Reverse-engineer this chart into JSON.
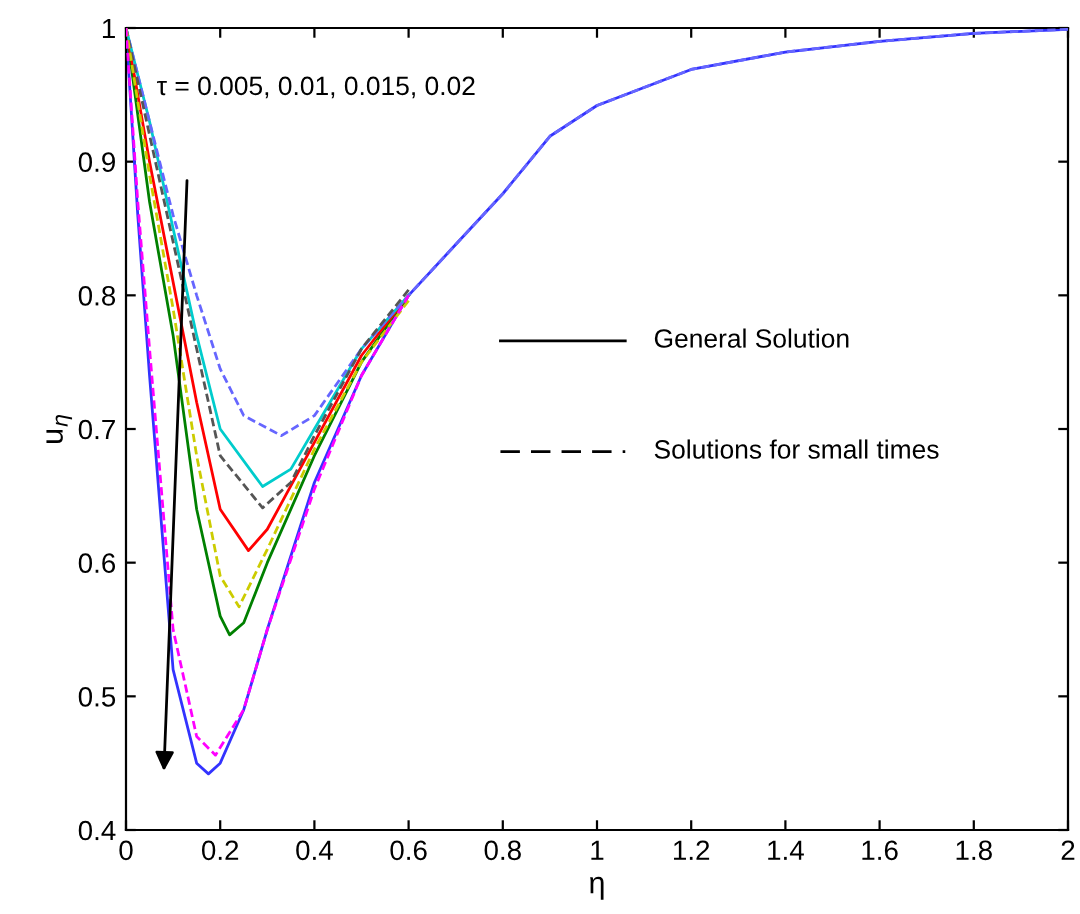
{
  "chart_data": {
    "type": "line",
    "xlabel": "η",
    "ylabel": "u$_{η}$",
    "annotations": [
      "τ = 0.005, 0.01, 0.015, 0.02",
      "General Solution",
      "Solutions for small times"
    ],
    "xlim": [
      0,
      2
    ],
    "ylim": [
      0.4,
      1
    ],
    "xticks": [
      0,
      0.2,
      0.4,
      0.6,
      0.8,
      1,
      1.2,
      1.4,
      1.6,
      1.8,
      2
    ],
    "yticks": [
      0.4,
      0.5,
      0.6,
      0.7,
      0.8,
      0.9,
      1
    ],
    "grid": false,
    "marker": "none",
    "series": [
      {
        "color": "#3333ff",
        "line_style": "solid",
        "x": [
          0,
          0.025,
          0.05,
          0.1,
          0.15,
          0.175,
          0.2,
          0.25,
          0.3,
          0.4,
          0.5,
          0.6,
          0.7,
          0.8,
          0.9,
          1.0,
          1.2,
          1.4,
          1.6,
          1.8,
          2.0
        ],
        "values": [
          1,
          0.86,
          0.74,
          0.52,
          0.45,
          0.442,
          0.45,
          0.49,
          0.55,
          0.66,
          0.74,
          0.8,
          0.838,
          0.876,
          0.919,
          0.942,
          0.969,
          0.982,
          0.99,
          0.996,
          0.999
        ]
      },
      {
        "color": "#008000",
        "line_style": "solid",
        "x": [
          0,
          0.05,
          0.1,
          0.15,
          0.2,
          0.22,
          0.25,
          0.3,
          0.4,
          0.5,
          0.6
        ],
        "values": [
          1,
          0.87,
          0.77,
          0.64,
          0.56,
          0.546,
          0.555,
          0.6,
          0.68,
          0.75,
          0.8
        ]
      },
      {
        "color": "#ff0000",
        "line_style": "solid",
        "x": [
          0,
          0.05,
          0.1,
          0.15,
          0.2,
          0.26,
          0.3,
          0.4,
          0.5,
          0.6
        ],
        "values": [
          1,
          0.9,
          0.81,
          0.72,
          0.64,
          0.609,
          0.625,
          0.69,
          0.755,
          0.8
        ]
      },
      {
        "color": "#00cccc",
        "line_style": "solid",
        "x": [
          0,
          0.05,
          0.1,
          0.15,
          0.2,
          0.29,
          0.35,
          0.4,
          0.5,
          0.6
        ],
        "values": [
          1,
          0.93,
          0.85,
          0.77,
          0.7,
          0.657,
          0.67,
          0.7,
          0.76,
          0.8
        ]
      },
      {
        "color": "#ff00ff",
        "line_style": "dashed",
        "x": [
          0,
          0.025,
          0.05,
          0.1,
          0.15,
          0.19,
          0.25,
          0.3,
          0.4,
          0.5,
          0.6
        ],
        "values": [
          1,
          0.87,
          0.76,
          0.55,
          0.47,
          0.456,
          0.49,
          0.55,
          0.655,
          0.74,
          0.8
        ]
      },
      {
        "color": "#cccc00",
        "line_style": "dashed",
        "x": [
          0,
          0.05,
          0.1,
          0.15,
          0.2,
          0.24,
          0.3,
          0.4,
          0.5,
          0.6
        ],
        "values": [
          1,
          0.89,
          0.79,
          0.68,
          0.59,
          0.567,
          0.61,
          0.685,
          0.75,
          0.796
        ]
      },
      {
        "color": "#555555",
        "line_style": "dashed",
        "x": [
          0,
          0.05,
          0.1,
          0.15,
          0.2,
          0.29,
          0.35,
          0.4,
          0.5,
          0.6
        ],
        "values": [
          1,
          0.92,
          0.84,
          0.76,
          0.68,
          0.641,
          0.66,
          0.695,
          0.76,
          0.804
        ]
      },
      {
        "color": "#6666ff",
        "line_style": "dashed",
        "x": [
          0,
          0.05,
          0.1,
          0.15,
          0.2,
          0.25,
          0.33,
          0.4,
          0.5,
          0.6,
          0.7,
          0.8,
          0.9,
          1.0,
          1.2,
          1.4,
          1.6,
          1.8,
          2.0
        ],
        "values": [
          1,
          0.93,
          0.86,
          0.8,
          0.745,
          0.71,
          0.695,
          0.71,
          0.76,
          0.8,
          0.838,
          0.876,
          0.919,
          0.942,
          0.969,
          0.982,
          0.99,
          0.996,
          0.999
        ]
      }
    ]
  }
}
